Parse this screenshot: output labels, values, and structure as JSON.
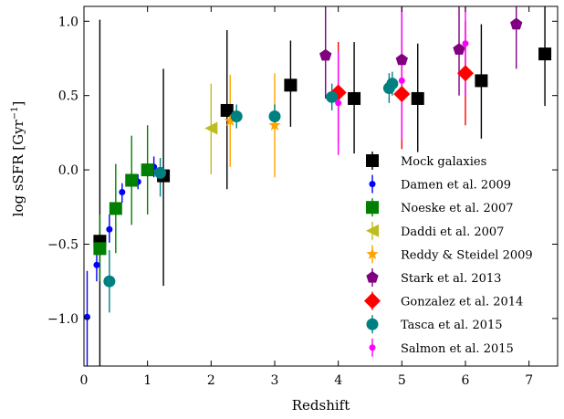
{
  "chart_data": {
    "type": "scatter",
    "xlabel": "Redshift",
    "ylabel": "log sSFR [Gyr",
    "ylabel_sup": "−1",
    "ylabel_close": "]",
    "xlim": [
      0,
      7.45
    ],
    "ylim": [
      -1.32,
      1.1
    ],
    "xticks": [
      0,
      1,
      2,
      3,
      4,
      5,
      6,
      7
    ],
    "yticks": [
      -1.0,
      -0.5,
      0.0,
      0.5,
      1.0
    ],
    "ytick_labels": [
      "−1.0",
      "−0.5",
      "0.0",
      "0.5",
      "1.0"
    ],
    "legend_position": "lower-right",
    "series": [
      {
        "name": "Mock galaxies",
        "marker": "square",
        "color": "#000000",
        "points": [
          {
            "x": 0.25,
            "y": -0.48,
            "lo": -1.35,
            "hi": 1.01
          },
          {
            "x": 1.25,
            "y": -0.04,
            "lo": -0.78,
            "hi": 0.68
          },
          {
            "x": 2.25,
            "y": 0.4,
            "lo": -0.13,
            "hi": 0.94
          },
          {
            "x": 3.25,
            "y": 0.57,
            "lo": 0.29,
            "hi": 0.87
          },
          {
            "x": 4.25,
            "y": 0.48,
            "lo": 0.11,
            "hi": 0.86
          },
          {
            "x": 5.25,
            "y": 0.48,
            "lo": 0.12,
            "hi": 0.85
          },
          {
            "x": 6.25,
            "y": 0.6,
            "lo": 0.21,
            "hi": 0.98
          },
          {
            "x": 7.25,
            "y": 0.78,
            "lo": 0.43,
            "hi": 1.12
          }
        ]
      },
      {
        "name": "Damen et al. 2009",
        "marker": "circle-small",
        "color": "#0000ff",
        "points": [
          {
            "x": 0.05,
            "y": -0.99,
            "lo": -1.35,
            "hi": -0.68
          },
          {
            "x": 0.2,
            "y": -0.64,
            "lo": -0.75,
            "hi": -0.52
          },
          {
            "x": 0.4,
            "y": -0.4,
            "lo": -0.49,
            "hi": -0.3
          },
          {
            "x": 0.6,
            "y": -0.15,
            "lo": -0.22,
            "hi": -0.09
          },
          {
            "x": 0.85,
            "y": -0.08,
            "lo": -0.13,
            "hi": -0.03
          },
          {
            "x": 1.1,
            "y": 0.02,
            "lo": -0.05,
            "hi": 0.09
          }
        ]
      },
      {
        "name": "Noeske et al. 2007",
        "marker": "square",
        "color": "#008000",
        "points": [
          {
            "x": 0.25,
            "y": -0.53,
            "lo": -0.75,
            "hi": -0.3
          },
          {
            "x": 0.5,
            "y": -0.26,
            "lo": -0.56,
            "hi": 0.04
          },
          {
            "x": 0.75,
            "y": -0.07,
            "lo": -0.37,
            "hi": 0.23
          },
          {
            "x": 1.0,
            "y": 0.0,
            "lo": -0.3,
            "hi": 0.3
          }
        ]
      },
      {
        "name": "Daddi et al. 2007",
        "marker": "triangle-left",
        "color": "#bcbd22",
        "points": [
          {
            "x": 2.0,
            "y": 0.28,
            "lo": -0.03,
            "hi": 0.58
          }
        ]
      },
      {
        "name": "Reddy & Steidel 2009",
        "marker": "star",
        "color": "#ffa500",
        "points": [
          {
            "x": 2.3,
            "y": 0.33,
            "lo": 0.02,
            "hi": 0.64
          },
          {
            "x": 3.0,
            "y": 0.3,
            "lo": -0.05,
            "hi": 0.65
          }
        ]
      },
      {
        "name": "Stark et al. 2013",
        "marker": "pentagon",
        "color": "#800080",
        "points": [
          {
            "x": 3.8,
            "y": 0.77,
            "lo": 0.48,
            "hi": 1.12
          },
          {
            "x": 5.0,
            "y": 0.74,
            "lo": 0.48,
            "hi": 1.12
          },
          {
            "x": 5.9,
            "y": 0.81,
            "lo": 0.5,
            "hi": 1.12
          },
          {
            "x": 6.8,
            "y": 0.98,
            "lo": 0.68,
            "hi": 1.12
          }
        ]
      },
      {
        "name": "Gonzalez et al. 2014",
        "marker": "diamond",
        "color": "#ff0000",
        "points": [
          {
            "x": 4.0,
            "y": 0.52,
            "lo": 0.18,
            "hi": 0.86
          },
          {
            "x": 5.0,
            "y": 0.51,
            "lo": 0.14,
            "hi": 0.86
          },
          {
            "x": 6.0,
            "y": 0.65,
            "lo": 0.3,
            "hi": 1.0
          }
        ]
      },
      {
        "name": "Tasca et al. 2015",
        "marker": "circle",
        "color": "#008080",
        "points": [
          {
            "x": 0.4,
            "y": -0.75,
            "lo": -0.96,
            "hi": -0.54
          },
          {
            "x": 1.2,
            "y": -0.02,
            "lo": -0.18,
            "hi": 0.08
          },
          {
            "x": 2.4,
            "y": 0.36,
            "lo": 0.28,
            "hi": 0.44
          },
          {
            "x": 3.0,
            "y": 0.36,
            "lo": 0.28,
            "hi": 0.44
          },
          {
            "x": 3.9,
            "y": 0.49,
            "lo": 0.4,
            "hi": 0.58
          },
          {
            "x": 4.8,
            "y": 0.55,
            "lo": 0.45,
            "hi": 0.65
          },
          {
            "x": 4.85,
            "y": 0.58,
            "lo": 0.5,
            "hi": 0.66
          }
        ]
      },
      {
        "name": "Salmon et al. 2015",
        "marker": "circle-small",
        "color": "#ff00ff",
        "points": [
          {
            "x": 4.0,
            "y": 0.45,
            "lo": 0.1,
            "hi": 0.8
          },
          {
            "x": 5.0,
            "y": 0.6,
            "lo": 0.2,
            "hi": 1.12
          },
          {
            "x": 6.0,
            "y": 0.85,
            "lo": 0.5,
            "hi": 1.12
          }
        ]
      }
    ]
  }
}
